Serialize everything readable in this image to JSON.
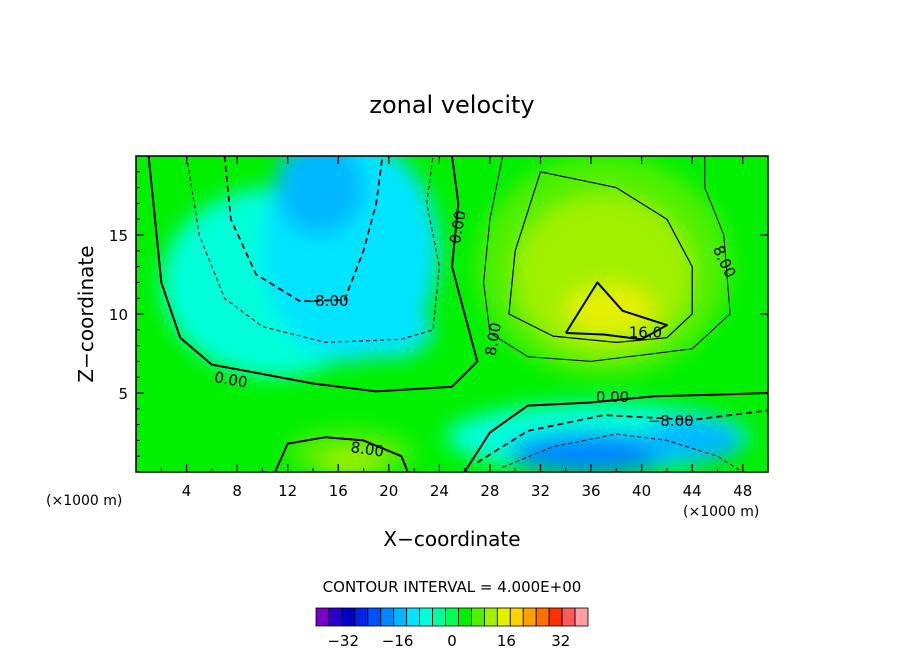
{
  "chart_data": {
    "type": "heatmap",
    "title": "zonal velocity",
    "xlabel": "X−coordinate",
    "ylabel": "Z−coordinate",
    "x_units_left": "(×1000 m)",
    "x_units_right": "(×1000 m)",
    "xlim": [
      0,
      50
    ],
    "ylim": [
      0,
      20
    ],
    "x_ticks": [
      4,
      8,
      12,
      16,
      20,
      24,
      28,
      32,
      36,
      40,
      44,
      48
    ],
    "y_ticks": [
      5,
      10,
      15
    ],
    "grid": false,
    "contour_interval_label": "CONTOUR INTERVAL = 4.000E+00",
    "contour_interval": 4,
    "contour_labels": [
      {
        "text": "0.00",
        "x": 25.5,
        "y": 15.5,
        "rotation": -80
      },
      {
        "text": "8.00",
        "x": 46.5,
        "y": 13.3,
        "rotation": 65
      },
      {
        "text": "−8.00",
        "x": 15.0,
        "y": 10.8,
        "rotation": 0
      },
      {
        "text": "16.0",
        "x": 40.3,
        "y": 8.8,
        "rotation": 0
      },
      {
        "text": "8.00",
        "x": 28.3,
        "y": 8.4,
        "rotation": -80
      },
      {
        "text": "0.00",
        "x": 7.5,
        "y": 5.8,
        "rotation": 10
      },
      {
        "text": "0.00",
        "x": 37.7,
        "y": 4.7,
        "rotation": 0
      },
      {
        "text": "−8.00",
        "x": 42.3,
        "y": 3.2,
        "rotation": 0
      },
      {
        "text": "8.00",
        "x": 18.3,
        "y": 1.4,
        "rotation": 8
      }
    ],
    "colorbar": {
      "levels": [
        -40,
        -36,
        -32,
        -28,
        -24,
        -20,
        -16,
        -12,
        -8,
        -4,
        0,
        4,
        8,
        12,
        16,
        20,
        24,
        28,
        32,
        36,
        40
      ],
      "colors": [
        "#7a00c8",
        "#2a00c8",
        "#0000c8",
        "#0024e0",
        "#0052ff",
        "#0088ff",
        "#00b8ff",
        "#00e4ff",
        "#00ffd8",
        "#00ffa0",
        "#00ff50",
        "#00f000",
        "#50f000",
        "#a0f000",
        "#e4f000",
        "#ffd200",
        "#ffa000",
        "#ff6e00",
        "#ff3000",
        "#ff5a5a",
        "#ff9ea0"
      ],
      "tick_labels": [
        "−32",
        "−16",
        "0",
        "16",
        "32"
      ],
      "tick_values": [
        -32,
        -16,
        0,
        16,
        32
      ]
    },
    "field_features": [
      {
        "name": "negative-core-top",
        "x": 14,
        "y": 18,
        "value": -14
      },
      {
        "name": "negative-region-left",
        "x": 12,
        "y": 12,
        "value": -9
      },
      {
        "name": "negative-region-mid",
        "x": 20,
        "y": 9,
        "value": -10
      },
      {
        "name": "positive-region-right",
        "x": 37,
        "y": 12,
        "value": 13
      },
      {
        "name": "positive-core-right",
        "x": 37,
        "y": 10,
        "value": 18
      },
      {
        "name": "negative-jet-bottom",
        "x": 36,
        "y": 1.2,
        "value": -20
      },
      {
        "name": "positive-blob-bottom",
        "x": 17,
        "y": 0.8,
        "value": 14
      }
    ]
  }
}
